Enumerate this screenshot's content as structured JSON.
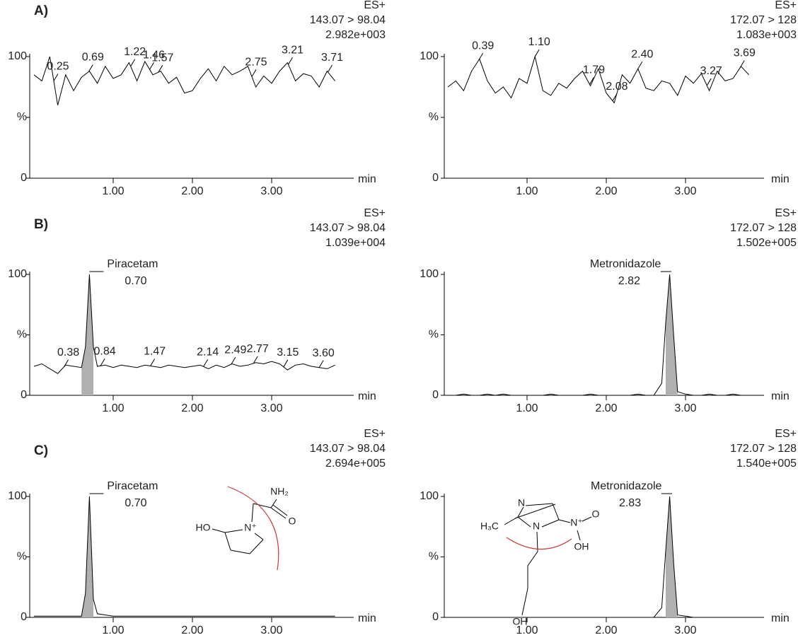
{
  "chart_data": [
    {
      "type": "line",
      "panel_label": "A)",
      "header": [
        "ES+",
        "143.07 > 98.04",
        "2.982e+003"
      ],
      "color": "#000000",
      "x": [
        0,
        0.1,
        0.2,
        0.3,
        0.4,
        0.5,
        0.6,
        0.7,
        0.8,
        0.9,
        1,
        1.1,
        1.2,
        1.3,
        1.4,
        1.5,
        1.6,
        1.7,
        1.8,
        1.9,
        2,
        2.1,
        2.2,
        2.3,
        2.4,
        2.5,
        2.6,
        2.7,
        2.8,
        2.9,
        3,
        3.1,
        3.2,
        3.3,
        3.4,
        3.5,
        3.6,
        3.7,
        3.8
      ],
      "values": [
        85,
        80,
        100,
        60,
        85,
        72,
        83,
        88,
        78,
        92,
        82,
        85,
        95,
        80,
        96,
        85,
        88,
        78,
        83,
        70,
        72,
        82,
        90,
        80,
        92,
        85,
        88,
        92,
        75,
        84,
        78,
        88,
        95,
        80,
        86,
        84,
        75,
        88,
        80
      ],
      "xlim": [
        0,
        4
      ],
      "ylim": [
        0,
        100
      ],
      "xticks": [
        {
          "value": 1,
          "label": "1.00"
        },
        {
          "value": 2,
          "label": "2.00"
        },
        {
          "value": 3,
          "label": "3.00"
        }
      ],
      "yticks": [
        0,
        {
          "value": 50,
          "label": "%"
        },
        100
      ],
      "xlabel": "min",
      "peaks": [
        0.25,
        0.69,
        1.22,
        1.46,
        1.57,
        2.75,
        3.21,
        3.71
      ]
    },
    {
      "type": "line",
      "header": [
        "ES+",
        "172.07 > 128",
        "1.083e+003"
      ],
      "color": "#000000",
      "x": [
        0,
        0.1,
        0.2,
        0.3,
        0.4,
        0.5,
        0.6,
        0.7,
        0.8,
        0.9,
        1,
        1.1,
        1.2,
        1.3,
        1.4,
        1.5,
        1.6,
        1.7,
        1.8,
        1.9,
        2,
        2.1,
        2.2,
        2.3,
        2.4,
        2.5,
        2.6,
        2.7,
        2.8,
        2.9,
        3,
        3.1,
        3.2,
        3.3,
        3.4,
        3.5,
        3.6,
        3.7,
        3.8
      ],
      "values": [
        75,
        80,
        72,
        88,
        98,
        80,
        70,
        75,
        66,
        82,
        78,
        100,
        72,
        68,
        78,
        74,
        82,
        88,
        76,
        90,
        70,
        62,
        85,
        78,
        90,
        74,
        72,
        80,
        78,
        68,
        84,
        78,
        86,
        72,
        88,
        80,
        82,
        92,
        85
      ],
      "xlim": [
        0,
        4
      ],
      "ylim": [
        0,
        100
      ],
      "xticks": [
        {
          "value": 1,
          "label": "1.00"
        },
        {
          "value": 2,
          "label": "2.00"
        },
        {
          "value": 3,
          "label": "3.00"
        }
      ],
      "yticks": [
        0,
        {
          "value": 50,
          "label": "%"
        },
        100
      ],
      "xlabel": "min",
      "peaks": [
        0.39,
        {
          "value": 1.1,
          "label": "1.10"
        },
        1.79,
        2.08,
        {
          "value": 2.4,
          "label": "2.40"
        },
        3.27,
        3.69
      ]
    },
    {
      "type": "line",
      "panel_label": "B)",
      "header": [
        "ES+",
        "143.07 > 98.04",
        "1.039e+004"
      ],
      "color": "#000000",
      "shade_color": "#b0b0b0",
      "x": [
        0,
        0.1,
        0.2,
        0.3,
        0.4,
        0.5,
        0.6,
        0.65,
        0.7,
        0.75,
        0.8,
        0.9,
        1,
        1.1,
        1.2,
        1.3,
        1.4,
        1.5,
        1.6,
        1.7,
        1.8,
        1.9,
        2,
        2.1,
        2.2,
        2.3,
        2.4,
        2.5,
        2.6,
        2.7,
        2.8,
        2.9,
        3,
        3.1,
        3.2,
        3.3,
        3.4,
        3.5,
        3.6,
        3.7,
        3.8
      ],
      "values": [
        24,
        26,
        22,
        18,
        25,
        24,
        23,
        40,
        100,
        40,
        24,
        25,
        23,
        25,
        24,
        23,
        25,
        24,
        23,
        25,
        24,
        23,
        24,
        25,
        22,
        25,
        23,
        26,
        24,
        25,
        27,
        26,
        28,
        26,
        21,
        25,
        26,
        24,
        23,
        22,
        25
      ],
      "xlim": [
        0,
        4
      ],
      "ylim": [
        0,
        100
      ],
      "xticks": [
        {
          "value": 1,
          "label": "1.00"
        },
        {
          "value": 2,
          "label": "2.00"
        },
        {
          "value": 3,
          "label": "3.00"
        }
      ],
      "yticks": [
        0,
        {
          "value": 50,
          "label": "%"
        },
        100
      ],
      "xlabel": "min",
      "compound": "Piracetam",
      "peak": {
        "value": 0.7,
        "label": "0.70"
      },
      "peaks": [
        0.38,
        0.84,
        1.47,
        2.14,
        2.49,
        2.77,
        3.15,
        {
          "value": 3.6,
          "label": "3.60"
        }
      ]
    },
    {
      "type": "line",
      "header": [
        "ES+",
        "172.07 > 128",
        "1.502e+005"
      ],
      "color": "#000000",
      "shade_color": "#b0b0b0",
      "x": [
        0,
        0.1,
        0.2,
        0.3,
        0.4,
        0.5,
        0.6,
        0.7,
        0.8,
        0.9,
        1,
        1.1,
        1.2,
        1.3,
        1.4,
        1.5,
        1.6,
        1.7,
        1.8,
        1.9,
        2,
        2.1,
        2.2,
        2.3,
        2.4,
        2.5,
        2.6,
        2.7,
        2.75,
        2.8,
        2.85,
        2.9,
        3,
        3.1,
        3.2,
        3.3,
        3.4,
        3.5,
        3.6,
        3.7,
        3.8
      ],
      "values": [
        0,
        0,
        1,
        0,
        0,
        1,
        0,
        1,
        0,
        0,
        0,
        0,
        0,
        1,
        0,
        0,
        0,
        0,
        1,
        0,
        0,
        0,
        0,
        0,
        1,
        0,
        0,
        10,
        60,
        100,
        50,
        3,
        1,
        0,
        0,
        1,
        0,
        0,
        1,
        0,
        0
      ],
      "xlim": [
        0,
        4
      ],
      "ylim": [
        0,
        100
      ],
      "xticks": [
        {
          "value": 1,
          "label": "1.00"
        },
        {
          "value": 2,
          "label": "2.00"
        },
        {
          "value": 3,
          "label": "3.00"
        }
      ],
      "yticks": [
        0,
        {
          "value": 50,
          "label": "%"
        },
        100
      ],
      "xlabel": "min",
      "compound": "Metronidazole",
      "peak": 2.82
    },
    {
      "type": "line",
      "panel_label": "C)",
      "header": [
        "ES+",
        "143.07 > 98.04",
        "2.694e+005"
      ],
      "color": "#000000",
      "shade_color": "#b0b0b0",
      "x": [
        0,
        0.1,
        0.2,
        0.3,
        0.4,
        0.5,
        0.6,
        0.65,
        0.7,
        0.75,
        0.8,
        0.9,
        1,
        1.1,
        1.2,
        1.3,
        1.4,
        1.5,
        1.6,
        1.7,
        1.8,
        1.9,
        2,
        2.1,
        2.2,
        2.3,
        2.4,
        2.5,
        2.6,
        2.7,
        2.8,
        2.9,
        3,
        3.1,
        3.2,
        3.3,
        3.4,
        3.5,
        3.6,
        3.7,
        3.8
      ],
      "values": [
        1,
        1,
        1,
        1,
        1,
        1,
        1,
        20,
        100,
        15,
        3,
        2,
        1,
        1,
        1,
        1,
        1,
        1,
        1,
        1,
        1,
        1,
        1,
        1,
        1,
        1,
        1,
        1,
        1,
        1,
        1,
        1,
        1,
        1,
        1,
        1,
        1,
        1,
        1,
        1,
        1
      ],
      "xlim": [
        0,
        4
      ],
      "ylim": [
        0,
        100
      ],
      "xticks": [
        {
          "value": 1,
          "label": "1.00"
        },
        {
          "value": 2,
          "label": "2.00"
        },
        {
          "value": 3,
          "label": "3.00"
        }
      ],
      "yticks": [
        0,
        {
          "value": 50,
          "label": "%"
        },
        100
      ],
      "xlabel": "min",
      "compound": "Piracetam",
      "peak": {
        "value": 0.7,
        "label": "0.70"
      },
      "structure": [
        "NH₂",
        "O",
        "HO",
        "N⁺"
      ]
    },
    {
      "type": "line",
      "header": [
        "ES+",
        "172.07 > 128",
        "1.540e+005"
      ],
      "color": "#000000",
      "shade_color": "#b0b0b0",
      "x": [
        0,
        0.1,
        0.2,
        0.3,
        0.4,
        0.5,
        0.6,
        0.7,
        0.8,
        0.9,
        1,
        1.1,
        1.2,
        1.3,
        1.4,
        1.5,
        1.6,
        1.7,
        1.8,
        1.9,
        2,
        2.1,
        2.2,
        2.3,
        2.4,
        2.5,
        2.6,
        2.7,
        2.75,
        2.8,
        2.85,
        2.9,
        3,
        3.1,
        3.2,
        3.3,
        3.4,
        3.5,
        3.6,
        3.7,
        3.8
      ],
      "values": [
        0,
        0,
        0,
        0,
        0,
        0,
        0,
        0,
        0,
        0,
        0,
        0,
        0,
        0,
        0,
        0,
        0,
        0,
        0,
        0,
        0,
        0,
        0,
        0,
        0,
        0,
        0,
        8,
        55,
        100,
        45,
        2,
        1,
        0,
        0,
        0,
        0,
        0,
        0,
        0,
        0
      ],
      "xlim": [
        0,
        4
      ],
      "ylim": [
        0,
        100
      ],
      "xticks": [
        {
          "value": 1,
          "label": "1.00"
        },
        {
          "value": 2,
          "label": "2.00"
        },
        {
          "value": 3,
          "label": "3.00"
        }
      ],
      "yticks": [
        0,
        {
          "value": 50,
          "label": "%"
        },
        100
      ],
      "xlabel": "min",
      "compound": "Metronidazole",
      "peak": 2.83,
      "structure": [
        "N",
        "H₃C",
        "N",
        "N⁺",
        "O",
        "OH",
        "OH"
      ]
    }
  ]
}
